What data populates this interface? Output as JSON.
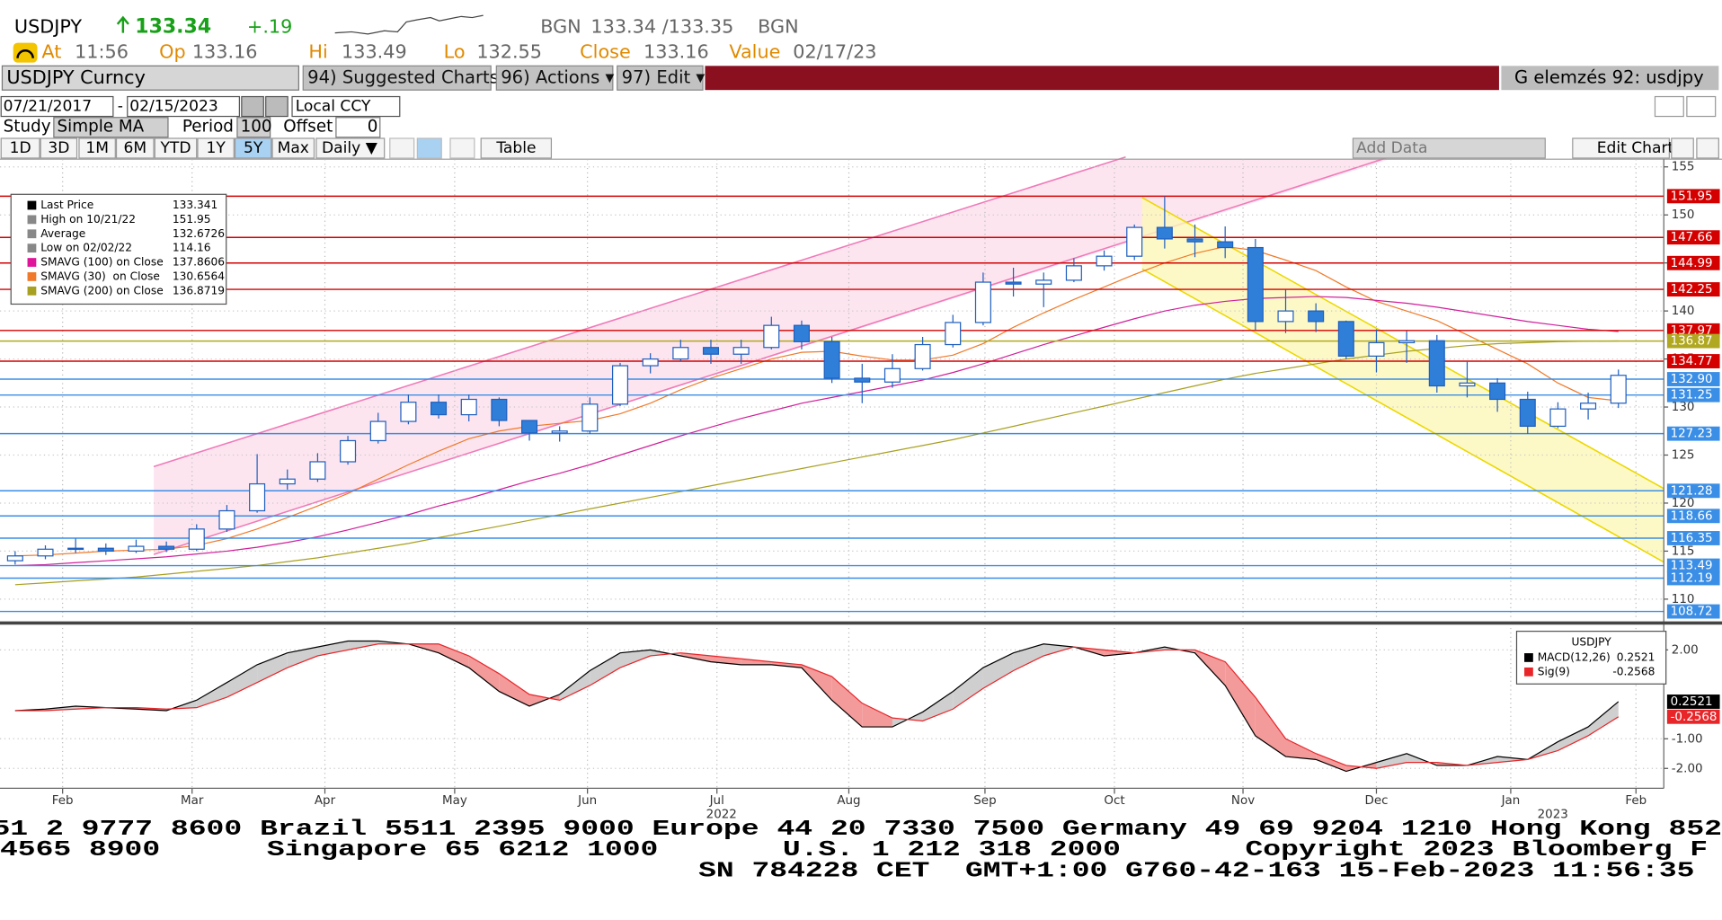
{
  "header": {
    "ticker": "USDJPY",
    "price": "133.34",
    "change": "+.19",
    "source": "BGN",
    "bid_ask": "133.34 /133.35",
    "source_2": "BGN",
    "stats": [
      {
        "label": "At",
        "value": "11:56"
      },
      {
        "label": "Op",
        "value": "133.16"
      },
      {
        "label": "Hi",
        "value": "133.49"
      },
      {
        "label": "Lo",
        "value": "132.55"
      },
      {
        "label": "Close",
        "value": "133.16"
      },
      {
        "label": "Value",
        "value": "02/17/23"
      }
    ]
  },
  "toolbar": {
    "security": "USDJPY Curncy",
    "buttons": [
      "94) Suggested Charts",
      "96) Actions ▾",
      "97) Edit ▾"
    ],
    "page_title": "G elemzés 92: usdjpy",
    "start_date": "07/21/2017",
    "date_separator": "-",
    "end_date": "02/15/2023",
    "currency": "Local CCY",
    "study_label": "Study",
    "study": "Simple MA",
    "period_label": "Period",
    "period": "100",
    "offset_label": "Offset",
    "offset": "0",
    "ranges": [
      "1D",
      "3D",
      "1M",
      "6M",
      "YTD",
      "1Y",
      "5Y",
      "Max"
    ],
    "active_range": "5Y",
    "frequency": "Daily ▼",
    "table": "Table",
    "add_data": "Add Data",
    "edit_chart": "Edit Chart"
  },
  "chart_data": [
    {
      "type": "candlestick",
      "legend": [
        {
          "label": "Last Price",
          "value": "133.341",
          "color": "#000000"
        },
        {
          "label": "High on 10/21/22",
          "value": "151.95",
          "color": "#888888"
        },
        {
          "label": "Average",
          "value": "132.6726",
          "color": "#888888"
        },
        {
          "label": "Low on 02/02/22",
          "value": "114.16",
          "color": "#888888"
        },
        {
          "label": "SMAVG (100) on Close",
          "value": "137.8606",
          "color": "#e0149a"
        },
        {
          "label": "SMAVG (30)  on Close",
          "value": "130.6564",
          "color": "#f07a2a"
        },
        {
          "label": "SMAVG (200) on Close",
          "value": "136.8719",
          "color": "#a8a020"
        }
      ],
      "x": [
        0,
        1,
        2,
        3,
        4,
        5,
        6,
        7,
        8,
        9,
        10,
        11,
        12,
        13,
        14,
        15,
        16,
        17,
        18,
        19,
        20,
        21,
        22,
        23,
        24,
        25,
        26,
        27,
        28,
        29,
        30,
        31,
        32,
        33,
        34,
        35,
        36,
        37,
        38,
        39,
        40,
        41,
        42,
        43,
        44,
        45,
        46,
        47,
        48,
        49,
        50,
        51,
        52,
        53
      ],
      "xlim": [
        -0.5,
        54.5
      ],
      "open": [
        114.0,
        114.5,
        115.2,
        115.3,
        115.0,
        115.5,
        115.2,
        117.3,
        119.2,
        122.0,
        122.5,
        124.3,
        126.5,
        128.5,
        130.5,
        129.2,
        130.8,
        128.6,
        127.3,
        127.5,
        130.3,
        134.3,
        135.0,
        136.2,
        135.5,
        136.2,
        138.5,
        136.8,
        133.0,
        132.6,
        134.0,
        136.5,
        138.8,
        143.0,
        142.8,
        143.2,
        144.7,
        145.7,
        148.7,
        147.5,
        147.2,
        146.6,
        138.9,
        140.0,
        138.9,
        135.3,
        136.7,
        136.9,
        132.2,
        132.5,
        130.8,
        128.0,
        129.8,
        130.4
      ],
      "high": [
        115.0,
        115.6,
        116.3,
        115.8,
        116.2,
        116.0,
        117.8,
        119.8,
        125.1,
        123.5,
        125.2,
        127.0,
        129.4,
        131.3,
        131.3,
        131.3,
        131.0,
        128.5,
        128.0,
        131.0,
        134.6,
        135.6,
        137.0,
        137.0,
        137.0,
        139.4,
        139.0,
        137.3,
        134.5,
        135.5,
        137.3,
        139.6,
        144.0,
        144.5,
        144.0,
        145.5,
        146.3,
        149.0,
        151.95,
        149.0,
        148.8,
        147.5,
        142.2,
        140.8,
        139.0,
        138.1,
        137.9,
        137.5,
        134.7,
        133.0,
        131.6,
        130.5,
        131.5,
        133.9
      ],
      "low": [
        113.6,
        114.16,
        114.8,
        114.6,
        114.8,
        114.9,
        115.0,
        117.0,
        119.0,
        121.4,
        122.2,
        124.0,
        126.2,
        128.2,
        128.8,
        128.5,
        128.0,
        126.5,
        126.4,
        127.2,
        130.1,
        133.5,
        134.8,
        134.5,
        134.5,
        136.0,
        136.0,
        132.5,
        130.4,
        132.0,
        133.8,
        136.2,
        138.5,
        141.5,
        140.4,
        143.0,
        144.2,
        145.3,
        146.5,
        145.6,
        145.5,
        138.0,
        137.7,
        137.8,
        135.0,
        133.6,
        134.6,
        131.5,
        131.0,
        129.5,
        127.2,
        127.8,
        128.7,
        129.9
      ],
      "close": [
        114.5,
        115.2,
        115.3,
        115.0,
        115.5,
        115.2,
        117.3,
        119.2,
        122.0,
        122.5,
        124.3,
        126.5,
        128.5,
        130.5,
        129.2,
        130.8,
        128.6,
        127.3,
        127.5,
        130.3,
        134.3,
        135.0,
        136.2,
        135.5,
        136.2,
        138.5,
        136.8,
        133.0,
        132.6,
        134.0,
        136.5,
        138.8,
        143.0,
        142.8,
        143.2,
        144.7,
        145.7,
        148.7,
        147.5,
        147.2,
        146.6,
        138.9,
        140.0,
        138.9,
        135.3,
        136.7,
        136.9,
        132.2,
        132.5,
        130.8,
        128.0,
        129.8,
        130.4,
        133.3
      ],
      "up_color": "#ffffff",
      "down_color": "#2f7fd8",
      "outline_color": "#1f5fbf",
      "moving_averages": [
        {
          "name": "SMAVG (30)",
          "color": "#f07a2a",
          "values": [
            114.5,
            114.6,
            114.8,
            115,
            115.1,
            115.2,
            115.6,
            116.3,
            117.3,
            118.5,
            119.7,
            121,
            122.5,
            124,
            125.4,
            126.7,
            127.5,
            128,
            128.3,
            128.6,
            129.3,
            130.4,
            131.8,
            133,
            134,
            135,
            135.7,
            135.8,
            135.3,
            134.9,
            134.9,
            135.4,
            136.6,
            138.3,
            139.8,
            141.2,
            142.5,
            143.8,
            145,
            146,
            146.7,
            146.3,
            145.3,
            144.2,
            142.5,
            141,
            140,
            139,
            137.5,
            136,
            134.5,
            132.5,
            131,
            130.65
          ]
        },
        {
          "name": "SMAVG (100)",
          "color": "#d0209a",
          "values": [
            113.5,
            113.6,
            113.8,
            114,
            114.2,
            114.4,
            114.7,
            115,
            115.4,
            115.9,
            116.5,
            117.2,
            118,
            118.8,
            119.7,
            120.5,
            121.4,
            122.3,
            123.1,
            124,
            125,
            126,
            127,
            127.9,
            128.8,
            129.6,
            130.4,
            131,
            131.6,
            132.2,
            132.8,
            133.6,
            134.5,
            135.5,
            136.5,
            137.4,
            138.3,
            139.2,
            140,
            140.6,
            141,
            141.3,
            141.4,
            141.5,
            141.4,
            141.1,
            140.8,
            140.4,
            139.9,
            139.4,
            138.9,
            138.5,
            138.1,
            137.86
          ]
        },
        {
          "name": "SMAVG (200)",
          "color": "#a8a020",
          "values": [
            111.5,
            111.7,
            111.9,
            112.1,
            112.3,
            112.6,
            112.9,
            113.2,
            113.5,
            113.9,
            114.3,
            114.8,
            115.3,
            115.8,
            116.4,
            117,
            117.6,
            118.2,
            118.8,
            119.4,
            120,
            120.6,
            121.2,
            121.8,
            122.4,
            123,
            123.6,
            124.2,
            124.8,
            125.4,
            126,
            126.6,
            127.3,
            128,
            128.7,
            129.4,
            130.1,
            130.8,
            131.5,
            132.2,
            132.9,
            133.5,
            134,
            134.5,
            135,
            135.4,
            135.8,
            136.1,
            136.4,
            136.6,
            136.7,
            136.8,
            136.85,
            136.87
          ]
        }
      ],
      "levels": [
        {
          "value": 151.95,
          "color": "#d40000"
        },
        {
          "value": 147.66,
          "color": "#d40000"
        },
        {
          "value": 144.99,
          "color": "#d40000"
        },
        {
          "value": 142.25,
          "color": "#d40000"
        },
        {
          "value": 137.97,
          "color": "#d40000"
        },
        {
          "value": 136.87,
          "color": "#b0a820"
        },
        {
          "value": 134.77,
          "color": "#d40000"
        },
        {
          "value": 132.9,
          "label": "132.90",
          "color": "#3a8ee6"
        },
        {
          "value": 131.25,
          "color": "#3a8ee6"
        },
        {
          "value": 127.23,
          "color": "#3a8ee6"
        },
        {
          "value": 121.28,
          "color": "#3a8ee6"
        },
        {
          "value": 118.66,
          "color": "#3a8ee6"
        },
        {
          "value": 116.35,
          "color": "#3a8ee6"
        },
        {
          "value": 113.49,
          "color": "#3a8ee6"
        },
        {
          "value": 112.19,
          "color": "#3a8ee6"
        },
        {
          "value": 108.72,
          "color": "#3a8ee6"
        }
      ],
      "ylim": [
        107.8,
        155.8
      ],
      "yticks": [
        110,
        115,
        120,
        125,
        130,
        135,
        140,
        145,
        150,
        155
      ],
      "grid": true
    },
    {
      "type": "macd",
      "legend_title": "USDJPY",
      "x": [
        0,
        1,
        2,
        3,
        4,
        5,
        6,
        7,
        8,
        9,
        10,
        11,
        12,
        13,
        14,
        15,
        16,
        17,
        18,
        19,
        20,
        21,
        22,
        23,
        24,
        25,
        26,
        27,
        28,
        29,
        30,
        31,
        32,
        33,
        34,
        35,
        36,
        37,
        38,
        39,
        40,
        41,
        42,
        43,
        44,
        45,
        46,
        47,
        48,
        49,
        50,
        51,
        52,
        53
      ],
      "xlim": [
        -0.5,
        54.5
      ],
      "xticks": [
        {
          "value": 1.57,
          "label": "Feb"
        },
        {
          "value": 5.85,
          "label": "Mar"
        },
        {
          "value": 10.24,
          "label": "Apr"
        },
        {
          "value": 14.53,
          "label": "May"
        },
        {
          "value": 18.92,
          "label": "Jun"
        },
        {
          "value": 23.2,
          "label": "Jul"
        },
        {
          "value": 27.56,
          "label": "Aug"
        },
        {
          "value": 32.06,
          "label": "Sep"
        },
        {
          "value": 36.34,
          "label": "Oct"
        },
        {
          "value": 40.59,
          "label": "Nov"
        },
        {
          "value": 45.0,
          "label": "Dec"
        },
        {
          "value": 49.44,
          "label": "Jan"
        },
        {
          "value": 53.58,
          "label": "Feb"
        }
      ],
      "year_ticks": [
        {
          "value": 23.35,
          "label": "2022"
        },
        {
          "value": 50.83,
          "label": "2023"
        }
      ],
      "series": [
        {
          "name": "MACD(12,26)",
          "color": "#000000",
          "value_label": "0.2521",
          "values": [
            -0.05,
            0,
            0.1,
            0.05,
            0,
            -0.05,
            0.3,
            0.9,
            1.5,
            1.9,
            2.1,
            2.3,
            2.3,
            2.2,
            1.9,
            1.4,
            0.6,
            0.1,
            0.5,
            1.3,
            1.9,
            2.0,
            1.8,
            1.6,
            1.5,
            1.5,
            1.4,
            0.3,
            -0.6,
            -0.6,
            -0.1,
            0.6,
            1.4,
            1.9,
            2.2,
            2.1,
            1.8,
            1.9,
            2.1,
            1.9,
            0.8,
            -0.9,
            -1.6,
            -1.7,
            -2.1,
            -1.8,
            -1.5,
            -1.9,
            -1.9,
            -1.6,
            -1.7,
            -1.1,
            -0.6,
            0.2521
          ]
        },
        {
          "name": "Sig(9)",
          "color": "#e8262a",
          "value_label": "-0.2568",
          "values": [
            -0.05,
            -0.05,
            0,
            0.05,
            0.05,
            0,
            0.05,
            0.4,
            0.9,
            1.4,
            1.8,
            2.0,
            2.2,
            2.2,
            2.2,
            1.8,
            1.2,
            0.5,
            0.3,
            0.8,
            1.4,
            1.8,
            1.9,
            1.8,
            1.7,
            1.6,
            1.5,
            1.1,
            0.2,
            -0.3,
            -0.4,
            0,
            0.7,
            1.3,
            1.8,
            2.1,
            2.0,
            1.9,
            2.0,
            2.0,
            1.6,
            0.4,
            -1.0,
            -1.5,
            -1.9,
            -2.0,
            -1.8,
            -1.8,
            -1.9,
            -1.8,
            -1.7,
            -1.4,
            -0.9,
            -0.2568
          ]
        }
      ],
      "ylim": [
        -2.67,
        2.74
      ],
      "yticks": [
        {
          "value": 2,
          "label": "2.00"
        },
        {
          "value": -1,
          "label": "-1.00"
        },
        {
          "value": -2,
          "label": "-2.00"
        }
      ],
      "grid": true
    }
  ],
  "footer": [
    "51 2 9777 8600 Brazil 5511 2395 9000 Europe 44 20 7330 7500 Germany 49 69 9204 1210 Hong Kong 852",
    "4565 8900      Singapore 65 6212 1000       U.S. 1 212 318 2000       Copyright 2023 Bloomberg F",
    "SN 784228 CET  GMT+1:00 G760-42-163 15-Feb-2023 11:56:35"
  ]
}
